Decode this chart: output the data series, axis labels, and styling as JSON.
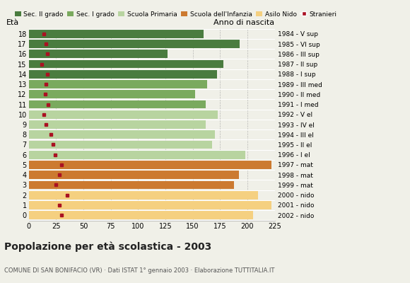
{
  "ages": [
    18,
    17,
    16,
    15,
    14,
    13,
    12,
    11,
    10,
    9,
    8,
    7,
    6,
    5,
    4,
    3,
    2,
    1,
    0
  ],
  "values": [
    160,
    193,
    127,
    178,
    172,
    163,
    152,
    162,
    173,
    162,
    170,
    168,
    198,
    222,
    192,
    188,
    210,
    222,
    205
  ],
  "foreigners": [
    14,
    16,
    17,
    12,
    17,
    16,
    15,
    18,
    14,
    16,
    20,
    22,
    24,
    30,
    28,
    25,
    35,
    28,
    30
  ],
  "right_labels": [
    "1984 - V sup",
    "1985 - VI sup",
    "1986 - III sup",
    "1987 - II sup",
    "1988 - I sup",
    "1989 - III med",
    "1990 - II med",
    "1991 - I med",
    "1992 - V el",
    "1993 - IV el",
    "1994 - III el",
    "1995 - II el",
    "1996 - I el",
    "1997 - mat",
    "1998 - mat",
    "1999 - mat",
    "2000 - nido",
    "2001 - nido",
    "2002 - nido"
  ],
  "bar_colors": [
    "#4a7c3f",
    "#4a7c3f",
    "#4a7c3f",
    "#4a7c3f",
    "#4a7c3f",
    "#7aaa5e",
    "#7aaa5e",
    "#7aaa5e",
    "#b8d4a0",
    "#b8d4a0",
    "#b8d4a0",
    "#b8d4a0",
    "#b8d4a0",
    "#cc7a30",
    "#cc7a30",
    "#cc7a30",
    "#f5d080",
    "#f5d080",
    "#f5d080"
  ],
  "legend_labels": [
    "Sec. II grado",
    "Sec. I grado",
    "Scuola Primaria",
    "Scuola dell'Infanzia",
    "Asilo Nido",
    "Stranieri"
  ],
  "legend_colors": [
    "#4a7c3f",
    "#7aaa5e",
    "#b8d4a0",
    "#cc7a30",
    "#f5d080",
    "#aa1122"
  ],
  "title": "Popolazione per età scolastica - 2003",
  "subtitle": "COMUNE DI SAN BONIFACIO (VR) · Dati ISTAT 1° gennaio 2003 · Elaborazione TUTTITALIA.IT",
  "eta_label": "Età",
  "anno_label": "Anno di nascita",
  "xlim": [
    0,
    225
  ],
  "xticks": [
    0,
    25,
    50,
    75,
    100,
    125,
    150,
    175,
    200,
    225
  ],
  "background_color": "#f0f0e8",
  "bar_height": 0.82
}
